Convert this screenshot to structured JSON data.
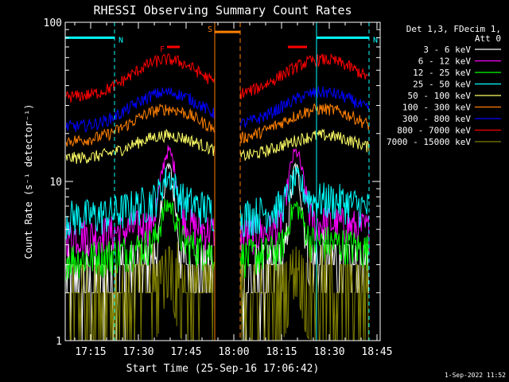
{
  "chart_data": {
    "type": "line",
    "title": "RHESSI Observing Summary Count Rates",
    "xlabel": "Start Time (25-Sep-16 17:06:42)",
    "ylabel": "Count Rate (s⁻¹ detector⁻¹)",
    "ylog": true,
    "ylim": [
      1,
      100
    ],
    "xlim_minutes": [
      7,
      106
    ],
    "x_ticks": [
      {
        "label": "17:15",
        "min": 15
      },
      {
        "label": "17:30",
        "min": 30
      },
      {
        "label": "17:45",
        "min": 45
      },
      {
        "label": "18:00",
        "min": 60
      },
      {
        "label": "18:15",
        "min": 75
      },
      {
        "label": "18:30",
        "min": 90
      },
      {
        "label": "18:45",
        "min": 105
      }
    ],
    "y_ticks": [
      {
        "label": "1",
        "value": 1
      },
      {
        "label": "10",
        "value": 10
      },
      {
        "label": "100",
        "value": 100
      }
    ],
    "grid": false,
    "legend_header": [
      "Det 1,3, FDecim 1,",
      "Att 0"
    ],
    "legend_position": "right",
    "gap_minutes": [
      54,
      62
    ],
    "series": [
      {
        "name": "3 - 6 keV",
        "color": "#ffffff",
        "base": 2.4,
        "amp": 0.25
      },
      {
        "name": "6 - 12 keV",
        "color": "#ff00ff",
        "base": 4.6,
        "amp": 0.15
      },
      {
        "name": "12 - 25 keV",
        "color": "#00ff00",
        "base": 3.3,
        "amp": 0.2
      },
      {
        "name": "25 - 50 keV",
        "color": "#00ffff",
        "base": 6.0,
        "amp": 0.22
      },
      {
        "name": "50 - 100 keV",
        "color": "#ffff66",
        "base": 14.0,
        "amp": 0.3
      },
      {
        "name": "100 - 300 keV",
        "color": "#ff8000",
        "base": 18.0,
        "amp": 0.45
      },
      {
        "name": "300 - 800 keV",
        "color": "#0000ff",
        "base": 22.0,
        "amp": 0.5
      },
      {
        "name": "800 - 7000 keV",
        "color": "#ff0000",
        "base": 34.0,
        "amp": 0.55
      },
      {
        "name": "7000 - 15000 keV",
        "color": "#808000",
        "base": 1.8,
        "amp": 0.2
      }
    ],
    "markers": [
      {
        "label": "N",
        "color": "#00ffff",
        "from": 7,
        "to": 22.5,
        "value": 80
      },
      {
        "label": "N",
        "color": "#00ffff",
        "from": 86,
        "to": 102.5,
        "value": 80
      },
      {
        "label": "F",
        "color": "#ff0000",
        "from": 39,
        "to": 43,
        "value": 70
      },
      {
        "label": "",
        "color": "#ff0000",
        "from": 77,
        "to": 83,
        "value": 70
      },
      {
        "label": "S",
        "color": "#ff8000",
        "from": 54,
        "to": 62,
        "value": 87
      }
    ],
    "vlines": [
      {
        "min": 22.5,
        "color": "#00ffff"
      },
      {
        "min": 86,
        "color": "#00ffff"
      },
      {
        "min": 102.5,
        "color": "#00ffff"
      },
      {
        "min": 54,
        "color": "#ff8000"
      },
      {
        "min": 62,
        "color": "#ff8000"
      }
    ],
    "flare_peaks_minutes": [
      39.5,
      79.5
    ]
  },
  "footer": {
    "timestamp": "1-Sep-2022 11:52"
  }
}
